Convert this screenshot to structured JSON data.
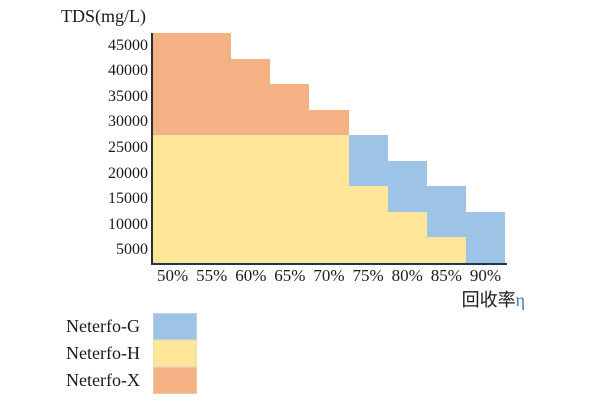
{
  "colors": {
    "axis_y": "#2B2F38",
    "axis_x": "#24364F",
    "eta_blue": "#4472C4",
    "text": "#1A1A1A"
  },
  "chart_data": {
    "type": "area",
    "subtype": "stepped-application-range",
    "title": "TDS(mg/L)",
    "xlabel": "回收率η",
    "xlabel_cn": "回收率",
    "xlabel_symbol": "η",
    "ylabel": "TDS(mg/L)",
    "x_categories": [
      "50%",
      "55%",
      "60%",
      "65%",
      "70%",
      "75%",
      "80%",
      "85%",
      "90%"
    ],
    "y_ticks": [
      5000,
      10000,
      15000,
      20000,
      25000,
      30000,
      35000,
      40000,
      45000
    ],
    "ylim": [
      2500,
      47500
    ],
    "grid": false,
    "legend_position": "bottom-left",
    "series": [
      {
        "name": "Neterfo-G",
        "color": "#9DC3E6",
        "bands": [
          {
            "category": "75%",
            "tds_min": 17500,
            "tds_max": 27500
          },
          {
            "category": "80%",
            "tds_min": 12500,
            "tds_max": 22500
          },
          {
            "category": "85%",
            "tds_min": 7500,
            "tds_max": 17500
          },
          {
            "category": "90%",
            "tds_min": 2500,
            "tds_max": 12500
          }
        ]
      },
      {
        "name": "Neterfo-H",
        "color": "#FFE699",
        "bands": [
          {
            "category": "50%",
            "tds_min": 2500,
            "tds_max": 27500
          },
          {
            "category": "55%",
            "tds_min": 2500,
            "tds_max": 27500
          },
          {
            "category": "60%",
            "tds_min": 2500,
            "tds_max": 27500
          },
          {
            "category": "65%",
            "tds_min": 2500,
            "tds_max": 27500
          },
          {
            "category": "70%",
            "tds_min": 2500,
            "tds_max": 27500
          },
          {
            "category": "75%",
            "tds_min": 2500,
            "tds_max": 17500
          },
          {
            "category": "80%",
            "tds_min": 2500,
            "tds_max": 12500
          },
          {
            "category": "85%",
            "tds_min": 2500,
            "tds_max": 7500
          }
        ]
      },
      {
        "name": "Neterfo-X",
        "color": "#F4B183",
        "bands": [
          {
            "category": "50%",
            "tds_min": 27500,
            "tds_max": 47500
          },
          {
            "category": "55%",
            "tds_min": 27500,
            "tds_max": 47500
          },
          {
            "category": "60%",
            "tds_min": 27500,
            "tds_max": 42500
          },
          {
            "category": "65%",
            "tds_min": 27500,
            "tds_max": 37500
          },
          {
            "category": "70%",
            "tds_min": 27500,
            "tds_max": 32500
          }
        ]
      }
    ]
  },
  "legend": {
    "items": [
      {
        "label": "Neterfo-G",
        "color": "#9DC3E6"
      },
      {
        "label": "Neterfo-H",
        "color": "#FFE699"
      },
      {
        "label": "Neterfo-X",
        "color": "#F4B183"
      }
    ]
  }
}
